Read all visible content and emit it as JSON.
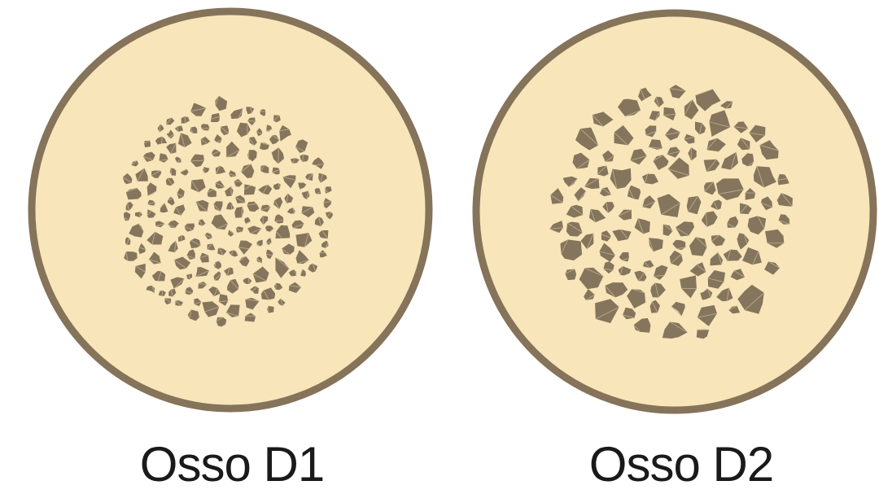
{
  "colors": {
    "cortex_fill": "#f8e5b9",
    "cortex_stroke": "#85735a",
    "pore_fill": "#85755c",
    "pore_vein": "#c3b38e",
    "caption_text": "#1a1a1a"
  },
  "panels": [
    {
      "id": "d1",
      "label": "Osso D1",
      "pore_count": 190,
      "pore_size": "small"
    },
    {
      "id": "d2",
      "label": "Osso D2",
      "pore_count": 175,
      "pore_size": "large"
    }
  ]
}
